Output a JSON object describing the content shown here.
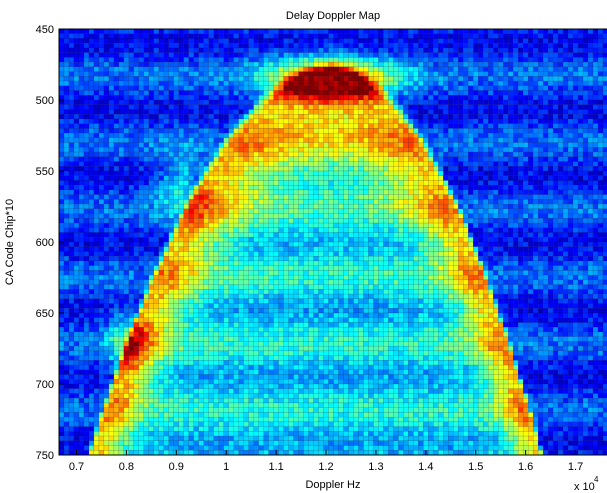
{
  "chart_data": {
    "type": "heatmap",
    "title": "Delay Doppler Map",
    "xlabel": "Doppler Hz",
    "ylabel": "CA Code Chip*10",
    "x_multiplier_label": "x 10",
    "x_multiplier_exponent": "4",
    "xlim": [
      0.665,
      1.765
    ],
    "ylim": [
      750,
      450
    ],
    "y_reversed": true,
    "x_ticks": [
      0.7,
      0.8,
      0.9,
      1,
      1.1,
      1.2,
      1.3,
      1.4,
      1.5,
      1.6,
      1.7
    ],
    "y_ticks": [
      450,
      500,
      550,
      600,
      650,
      700,
      750
    ],
    "colormap": "jet",
    "colormap_stops": [
      "#00008f",
      "#0000ff",
      "#0080ff",
      "#00ffff",
      "#80ff80",
      "#ffff00",
      "#ff8000",
      "#ff0000",
      "#800000"
    ],
    "grid": "dense black mesh lines over cells",
    "peak": {
      "x": 1.21,
      "y": 485,
      "intensity": 1.0
    },
    "description_shape": "inverted parabola arc: apex near x=1.2, y=485; arms reach about x=0.75 and x=1.6 at y=740",
    "intensity_samples": [
      {
        "y": 485,
        "x": [
          0.95,
          1.05,
          1.15,
          1.2,
          1.25,
          1.3,
          1.35,
          1.45
        ],
        "values": [
          0.35,
          0.55,
          0.85,
          1.0,
          0.95,
          0.8,
          0.5,
          0.35
        ]
      },
      {
        "y": 520,
        "x": [
          0.9,
          1.0,
          1.1,
          1.2,
          1.3,
          1.4,
          1.5
        ],
        "values": [
          0.45,
          0.7,
          0.75,
          0.65,
          0.65,
          0.55,
          0.35
        ]
      },
      {
        "y": 560,
        "x": [
          0.85,
          0.9,
          1.0,
          1.2,
          1.4,
          1.5,
          1.6
        ],
        "values": [
          0.45,
          0.7,
          0.55,
          0.45,
          0.5,
          0.55,
          0.3
        ]
      },
      {
        "y": 620,
        "x": [
          0.8,
          0.88,
          1.0,
          1.2,
          1.4,
          1.5,
          1.6
        ],
        "values": [
          0.4,
          0.55,
          0.45,
          0.4,
          0.45,
          0.5,
          0.3
        ]
      },
      {
        "y": 680,
        "x": [
          0.75,
          0.8,
          1.0,
          1.2,
          1.4,
          1.55,
          1.65
        ],
        "values": [
          0.4,
          0.6,
          0.4,
          0.35,
          0.4,
          0.45,
          0.25
        ]
      },
      {
        "y": 740,
        "x": [
          0.7,
          0.8,
          1.0,
          1.2,
          1.4,
          1.6,
          1.7
        ],
        "values": [
          0.4,
          0.45,
          0.35,
          0.35,
          0.35,
          0.3,
          0.2
        ]
      }
    ]
  }
}
